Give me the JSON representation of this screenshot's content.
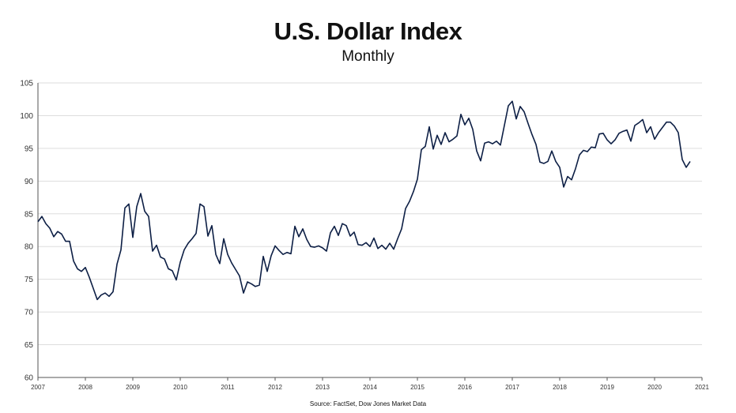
{
  "chart_data": {
    "type": "line",
    "title": "U.S. Dollar Index",
    "subtitle": "Monthly",
    "source": "Source: FactSet, Dow Jones Market Data",
    "xlabel": "",
    "ylabel": "",
    "ylim": [
      60,
      105
    ],
    "xlim": [
      2007,
      2021
    ],
    "y_ticks": [
      "60",
      "65",
      "70",
      "75",
      "80",
      "85",
      "90",
      "95",
      "100",
      "105"
    ],
    "x_ticks": [
      "2007",
      "2008",
      "2009",
      "2010",
      "2011",
      "2012",
      "2013",
      "2014",
      "2015",
      "2016",
      "2017",
      "2018",
      "2019",
      "2020",
      "2021"
    ],
    "grid": "horizontal",
    "line_color": "#0d1f45",
    "series": [
      {
        "x": [
          "2007-01",
          "2007-02",
          "2007-03",
          "2007-04",
          "2007-05",
          "2007-06",
          "2007-07",
          "2007-08",
          "2007-09",
          "2007-10",
          "2007-11",
          "2007-12",
          "2008-01",
          "2008-02",
          "2008-03",
          "2008-04",
          "2008-05",
          "2008-06",
          "2008-07",
          "2008-08",
          "2008-09",
          "2008-10",
          "2008-11",
          "2008-12",
          "2009-01",
          "2009-02",
          "2009-03",
          "2009-04",
          "2009-05",
          "2009-06",
          "2009-07",
          "2009-08",
          "2009-09",
          "2009-10",
          "2009-11",
          "2009-12",
          "2010-01",
          "2010-02",
          "2010-03",
          "2010-04",
          "2010-05",
          "2010-06",
          "2010-07",
          "2010-08",
          "2010-09",
          "2010-10",
          "2010-11",
          "2010-12",
          "2011-01",
          "2011-02",
          "2011-03",
          "2011-04",
          "2011-05",
          "2011-06",
          "2011-07",
          "2011-08",
          "2011-09",
          "2011-10",
          "2011-11",
          "2011-12",
          "2012-01",
          "2012-02",
          "2012-03",
          "2012-04",
          "2012-05",
          "2012-06",
          "2012-07",
          "2012-08",
          "2012-09",
          "2012-10",
          "2012-11",
          "2012-12",
          "2013-01",
          "2013-02",
          "2013-03",
          "2013-04",
          "2013-05",
          "2013-06",
          "2013-07",
          "2013-08",
          "2013-09",
          "2013-10",
          "2013-11",
          "2013-12",
          "2014-01",
          "2014-02",
          "2014-03",
          "2014-04",
          "2014-05",
          "2014-06",
          "2014-07",
          "2014-08",
          "2014-09",
          "2014-10",
          "2014-11",
          "2014-12",
          "2015-01",
          "2015-02",
          "2015-03",
          "2015-04",
          "2015-05",
          "2015-06",
          "2015-07",
          "2015-08",
          "2015-09",
          "2015-10",
          "2015-11",
          "2015-12",
          "2016-01",
          "2016-02",
          "2016-03",
          "2016-04",
          "2016-05",
          "2016-06",
          "2016-07",
          "2016-08",
          "2016-09",
          "2016-10",
          "2016-11",
          "2016-12",
          "2017-01",
          "2017-02",
          "2017-03",
          "2017-04",
          "2017-05",
          "2017-06",
          "2017-07",
          "2017-08",
          "2017-09",
          "2017-10",
          "2017-11",
          "2017-12",
          "2018-01",
          "2018-02",
          "2018-03",
          "2018-04",
          "2018-05",
          "2018-06",
          "2018-07",
          "2018-08",
          "2018-09",
          "2018-10",
          "2018-11",
          "2018-12",
          "2019-01",
          "2019-02",
          "2019-03",
          "2019-04",
          "2019-05",
          "2019-06",
          "2019-07",
          "2019-08",
          "2019-09",
          "2019-10",
          "2019-11",
          "2019-12",
          "2020-01",
          "2020-02",
          "2020-03",
          "2020-04",
          "2020-05",
          "2020-06",
          "2020-07",
          "2020-08",
          "2020-09"
        ],
        "values": [
          83.8,
          84.6,
          83.5,
          82.8,
          81.5,
          82.3,
          81.9,
          80.8,
          80.8,
          77.8,
          76.6,
          76.2,
          76.8,
          75.3,
          73.6,
          71.9,
          72.6,
          72.9,
          72.4,
          73.1,
          77.3,
          79.5,
          85.9,
          86.5,
          81.4,
          86.1,
          88.1,
          85.4,
          84.6,
          79.3,
          80.2,
          78.4,
          78.1,
          76.6,
          76.3,
          74.9,
          77.6,
          79.5,
          80.5,
          81.2,
          82.0,
          86.5,
          86.1,
          81.6,
          83.2,
          78.8,
          77.4,
          81.2,
          78.8,
          77.5,
          76.5,
          75.5,
          72.9,
          74.6,
          74.3,
          73.9,
          74.1,
          78.5,
          76.2,
          78.6,
          80.1,
          79.4,
          78.8,
          79.1,
          78.9,
          83.1,
          81.5,
          82.7,
          81.1,
          80.0,
          79.9,
          80.1,
          79.8,
          79.3,
          82.1,
          83.1,
          81.7,
          83.5,
          83.2,
          81.6,
          82.2,
          80.3,
          80.2,
          80.6,
          80.0,
          81.3,
          79.7,
          80.2,
          79.6,
          80.5,
          79.6,
          81.2,
          82.7,
          85.8,
          86.9,
          88.4,
          90.3,
          94.8,
          95.3,
          98.3,
          94.9,
          97.0,
          95.6,
          97.4,
          96.0,
          96.4,
          96.9,
          100.2,
          98.6,
          99.6,
          97.9,
          94.6,
          93.1,
          95.8,
          96.0,
          95.7,
          96.1,
          95.5,
          98.5,
          101.5,
          102.2,
          99.5,
          101.4,
          100.6,
          98.8,
          97.1,
          95.6,
          92.9,
          92.7,
          93.0,
          94.6,
          93.0,
          92.1,
          89.1,
          90.7,
          90.2,
          91.9,
          94.0,
          94.7,
          94.5,
          95.2,
          95.1,
          97.2,
          97.3,
          96.3,
          95.7,
          96.3,
          97.3,
          97.6,
          97.8,
          96.1,
          98.5,
          98.9,
          99.4,
          97.4,
          98.3,
          96.4,
          97.4,
          98.2,
          99.0,
          99.0,
          98.4,
          97.4,
          93.3,
          92.1
        ]
      }
    ]
  },
  "last_point": {
    "x": "2020-10",
    "value": 93.0
  }
}
